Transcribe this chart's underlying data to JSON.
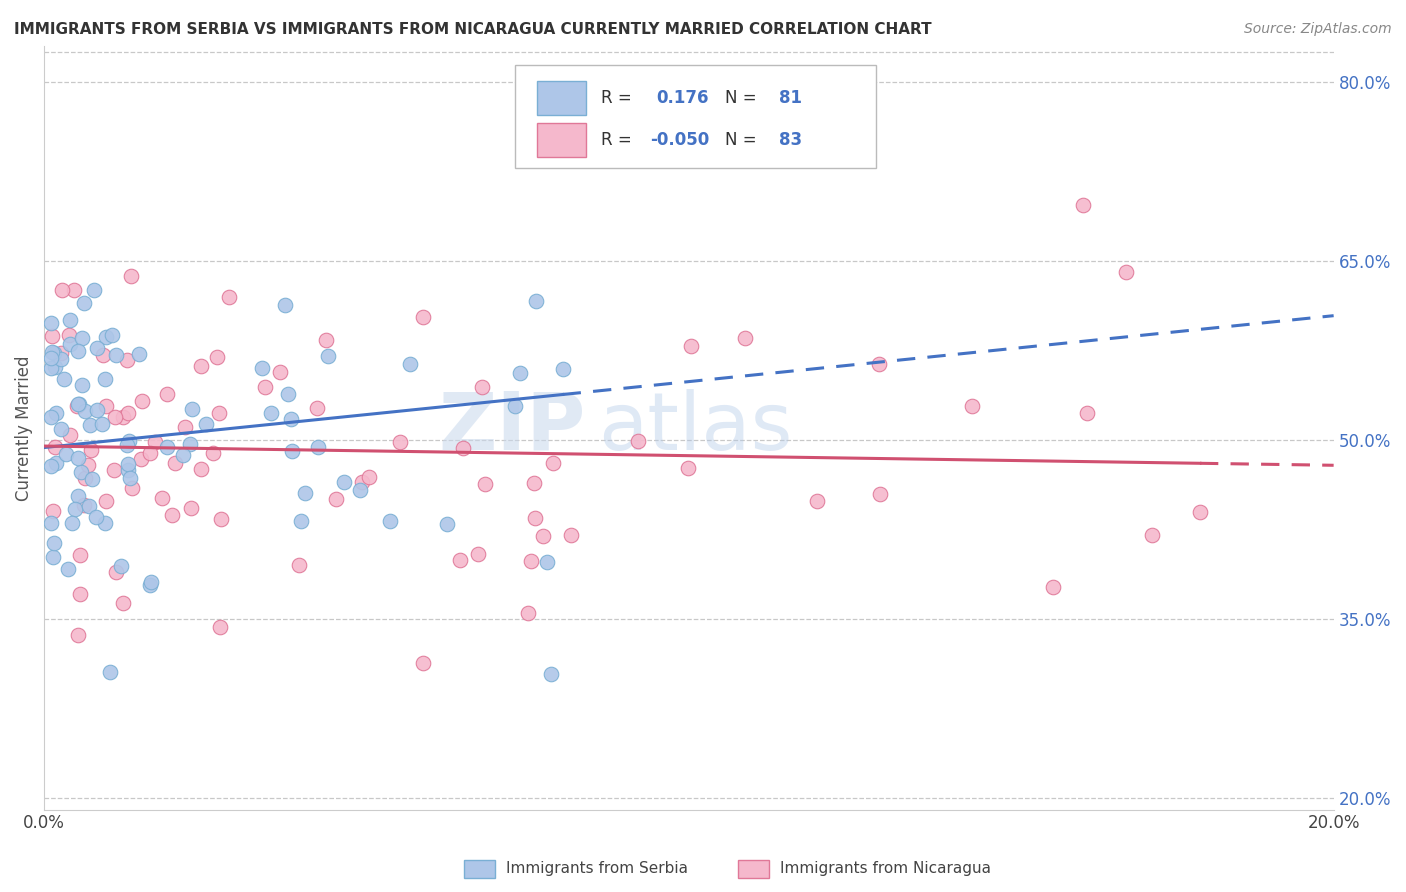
{
  "title": "IMMIGRANTS FROM SERBIA VS IMMIGRANTS FROM NICARAGUA CURRENTLY MARRIED CORRELATION CHART",
  "source_text": "Source: ZipAtlas.com",
  "ylabel": "Currently Married",
  "xmin": 0.0,
  "xmax": 0.2,
  "ymin": 0.19,
  "ymax": 0.83,
  "yticks": [
    0.2,
    0.35,
    0.5,
    0.65,
    0.8
  ],
  "ytick_labels": [
    "20.0%",
    "35.0%",
    "50.0%",
    "65.0%",
    "80.0%"
  ],
  "series1_color": "#aec6e8",
  "series1_edge": "#7aafd4",
  "series2_color": "#f5b8cc",
  "series2_edge": "#e07898",
  "trendline1_color": "#4472c4",
  "trendline2_color": "#d05070",
  "R1": 0.176,
  "N1": 81,
  "R2": -0.05,
  "N2": 83,
  "legend_label1": "Immigrants from Serbia",
  "legend_label2": "Immigrants from Nicaragua",
  "watermark_zip": "ZIP",
  "watermark_atlas": "atlas",
  "grid_color": "#c8c8c8",
  "background_color": "#ffffff",
  "title_color": "#333333",
  "axis_label_color": "#555555",
  "right_tick_color": "#4472c4"
}
